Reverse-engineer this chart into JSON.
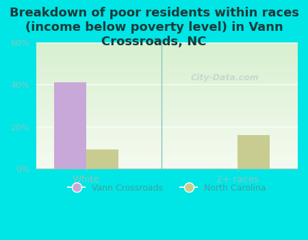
{
  "title": "Breakdown of poor residents within races\n(income below poverty level) in Vann\nCrossroads, NC",
  "categories": [
    "White",
    "2+ races"
  ],
  "vann_crossroads": [
    41.0,
    0.0
  ],
  "north_carolina": [
    9.0,
    16.0
  ],
  "bar_color_vann": "#c8a8d8",
  "bar_color_nc": "#c8cc90",
  "background_color": "#00e5e5",
  "ylim": [
    0,
    60
  ],
  "yticks": [
    0,
    20,
    40,
    60
  ],
  "ytick_labels": [
    "0%",
    "20%",
    "40%",
    "60%"
  ],
  "legend_vann": "Vann Crossroads",
  "legend_nc": "North Carolina",
  "title_fontsize": 13,
  "tick_color": "#80c8c0",
  "watermark": "City-Data.com",
  "bar_width": 0.32,
  "x_positions": [
    0.5,
    2.0
  ],
  "xlim": [
    0,
    2.6
  ],
  "separator_x": 1.25
}
